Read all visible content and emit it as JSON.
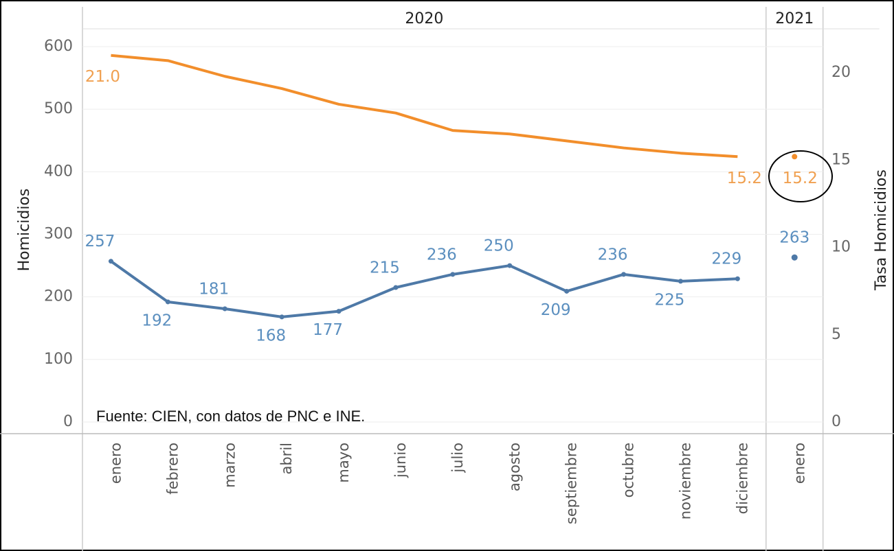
{
  "chart_data": {
    "type": "line",
    "y_label": "Homicidios",
    "y2_label": "Tasa Homicidios",
    "annotation": "Fuente: CIEN, con datos de PNC e INE.",
    "x_groups": [
      {
        "label": "2020",
        "categories": [
          "enero",
          "febrero",
          "marzo",
          "abril",
          "mayo",
          "junio",
          "julio",
          "agosto",
          "septiembre",
          "octubre",
          "noviembre",
          "diciembre"
        ]
      },
      {
        "label": "2021",
        "categories": [
          "enero"
        ]
      }
    ],
    "series": [
      {
        "name": "Homicidios",
        "color": "#4e79a7",
        "label_color": "#5b8fbf",
        "values": [
          [
            257,
            192,
            181,
            168,
            177,
            215,
            236,
            250,
            209,
            236,
            225,
            229
          ],
          [
            263
          ]
        ]
      },
      {
        "name": "Tasa Homicidios",
        "color": "#f28e2b",
        "label_color": "#f0a050",
        "axis": "y2",
        "values": [
          [
            21.0,
            20.7,
            19.8,
            19.1,
            18.2,
            17.7,
            16.7,
            16.5,
            16.1,
            15.7,
            15.4,
            15.2
          ],
          [
            15.2
          ]
        ],
        "value_labels": [
          [
            "21.0",
            null,
            null,
            null,
            null,
            null,
            null,
            null,
            null,
            null,
            null,
            "15.2"
          ],
          [
            "15.2"
          ]
        ]
      }
    ],
    "ylim": [
      0,
      600
    ],
    "yticks": [
      0,
      100,
      200,
      300,
      400,
      500,
      600
    ],
    "y2lim": [
      0,
      21.5
    ],
    "y2ticks": [
      0,
      5,
      10,
      15,
      20
    ],
    "grid": true
  }
}
